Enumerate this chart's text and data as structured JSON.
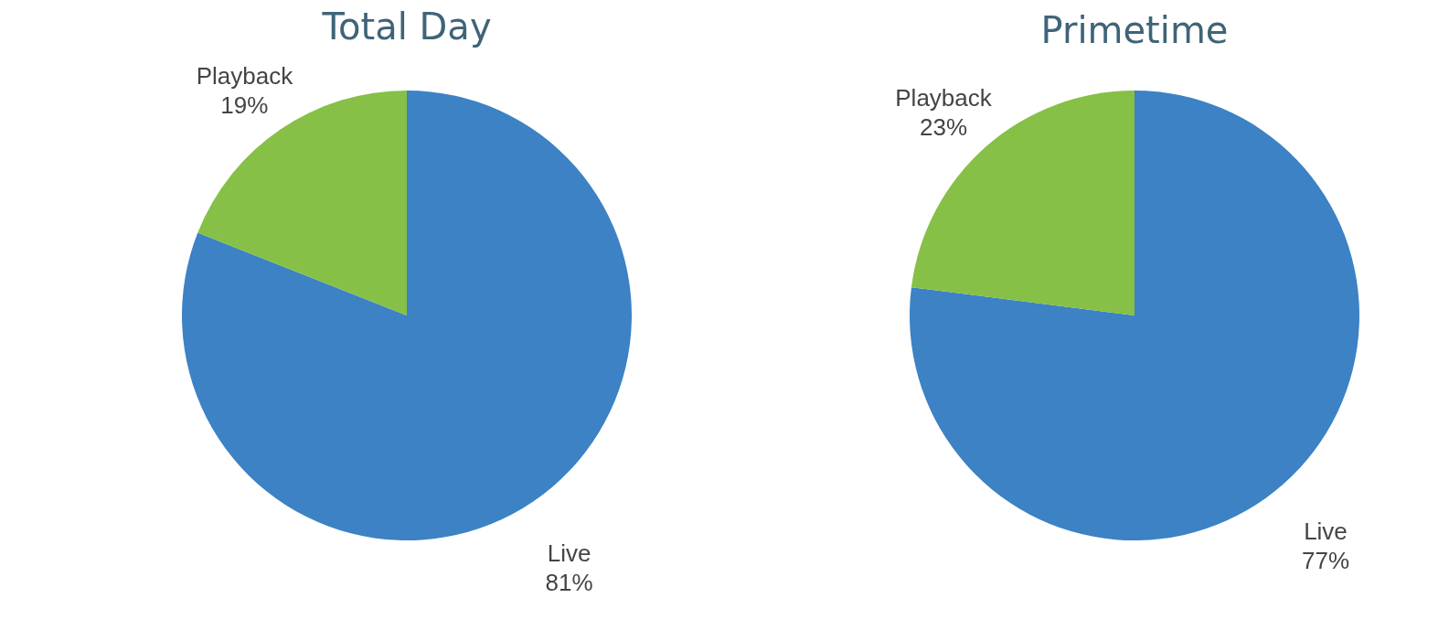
{
  "chart_data": [
    {
      "type": "pie",
      "title": "Total Day",
      "categories": [
        "Live",
        "Playback"
      ],
      "values": [
        81,
        19
      ],
      "colors": [
        "#3c82c4",
        "#86c046"
      ],
      "value_labels": [
        "81%",
        "19%"
      ]
    },
    {
      "type": "pie",
      "title": "Primetime",
      "categories": [
        "Live",
        "Playback"
      ],
      "values": [
        77,
        23
      ],
      "colors": [
        "#3c82c4",
        "#86c046"
      ],
      "value_labels": [
        "77%",
        "23%"
      ]
    }
  ]
}
